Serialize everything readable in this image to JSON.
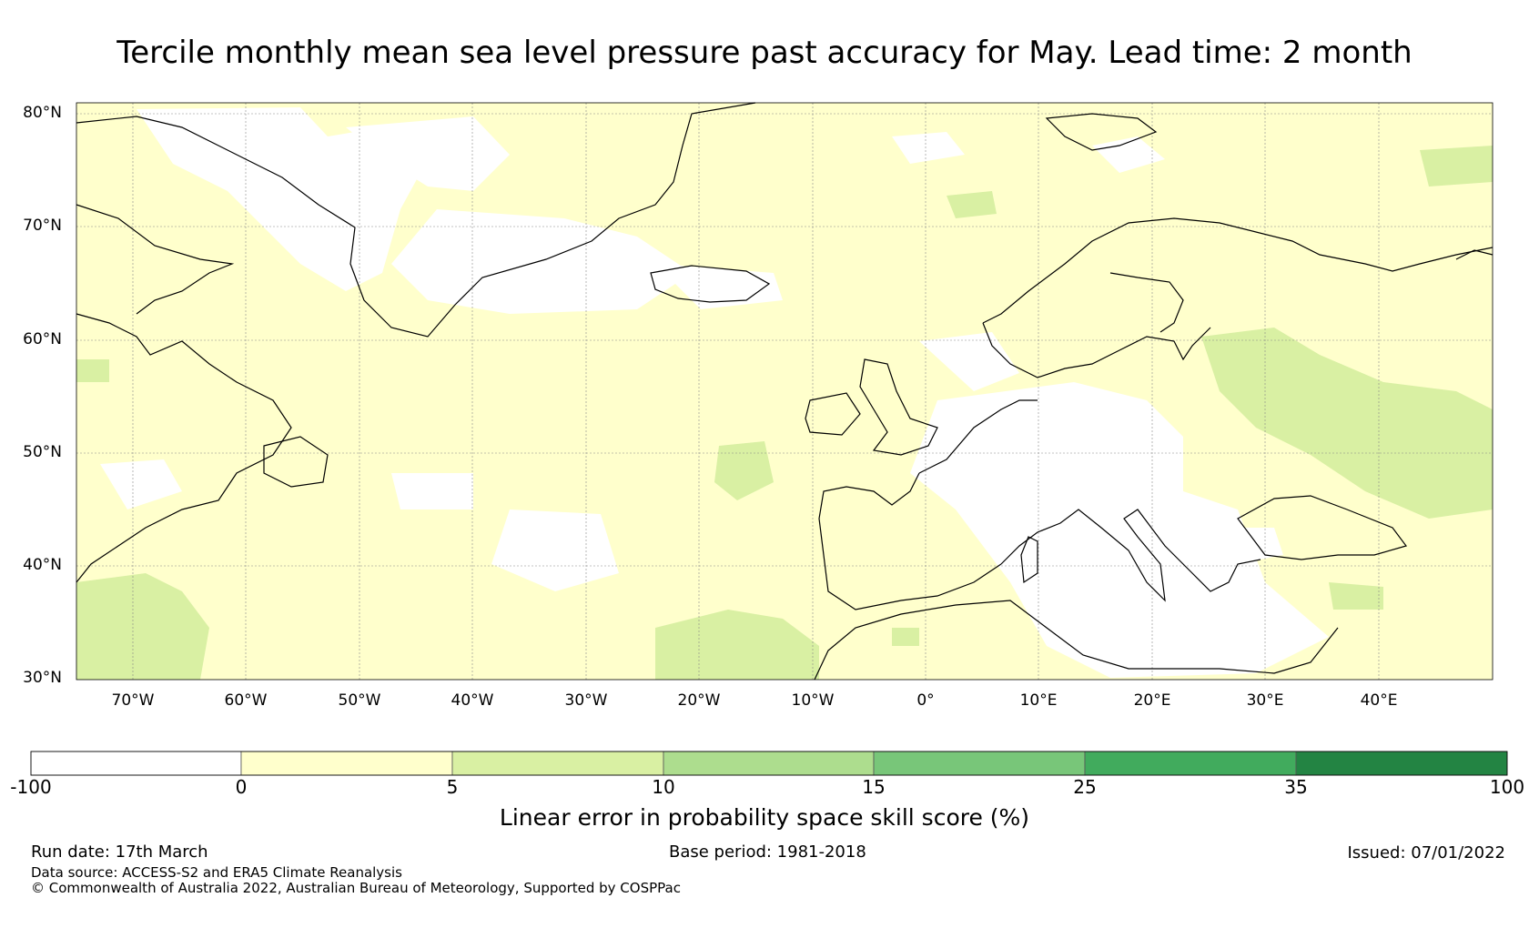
{
  "title": "Tercile monthly mean sea level pressure past accuracy for May. Lead time: 2 month",
  "map": {
    "lat_ticks": [
      "80°N",
      "70°N",
      "60°N",
      "50°N",
      "40°N",
      "30°N"
    ],
    "lon_ticks": [
      "70°W",
      "60°W",
      "50°W",
      "40°W",
      "30°W",
      "20°W",
      "10°W",
      "0°",
      "10°E",
      "20°E",
      "30°E",
      "40°E"
    ],
    "extent": {
      "lon_min": -75,
      "lon_max": 50,
      "lat_min": 30,
      "lat_max": 81
    },
    "dominant_class": "0 to 5",
    "colors": {
      "land_line": "#000000",
      "grid": "#888888"
    }
  },
  "colorbar": {
    "title": "Linear error in probability space skill score (%)",
    "ticks": [
      "-100",
      "0",
      "5",
      "10",
      "15",
      "25",
      "35",
      "100"
    ],
    "colors": [
      "#ffffff",
      "#ffffcc",
      "#d9f0a3",
      "#addd8e",
      "#78c679",
      "#41ab5d",
      "#238443"
    ]
  },
  "footer": {
    "run_date": "Run date: 17th March",
    "base_period": "Base period: 1981-2018",
    "issued": "Issued: 07/01/2022",
    "data_source": "Data source: ACCESS-S2 and ERA5 Climate Reanalysis",
    "copyright": "© Commonwealth of Australia 2022, Australian Bureau of Meteorology, Supported by COSPPac"
  }
}
